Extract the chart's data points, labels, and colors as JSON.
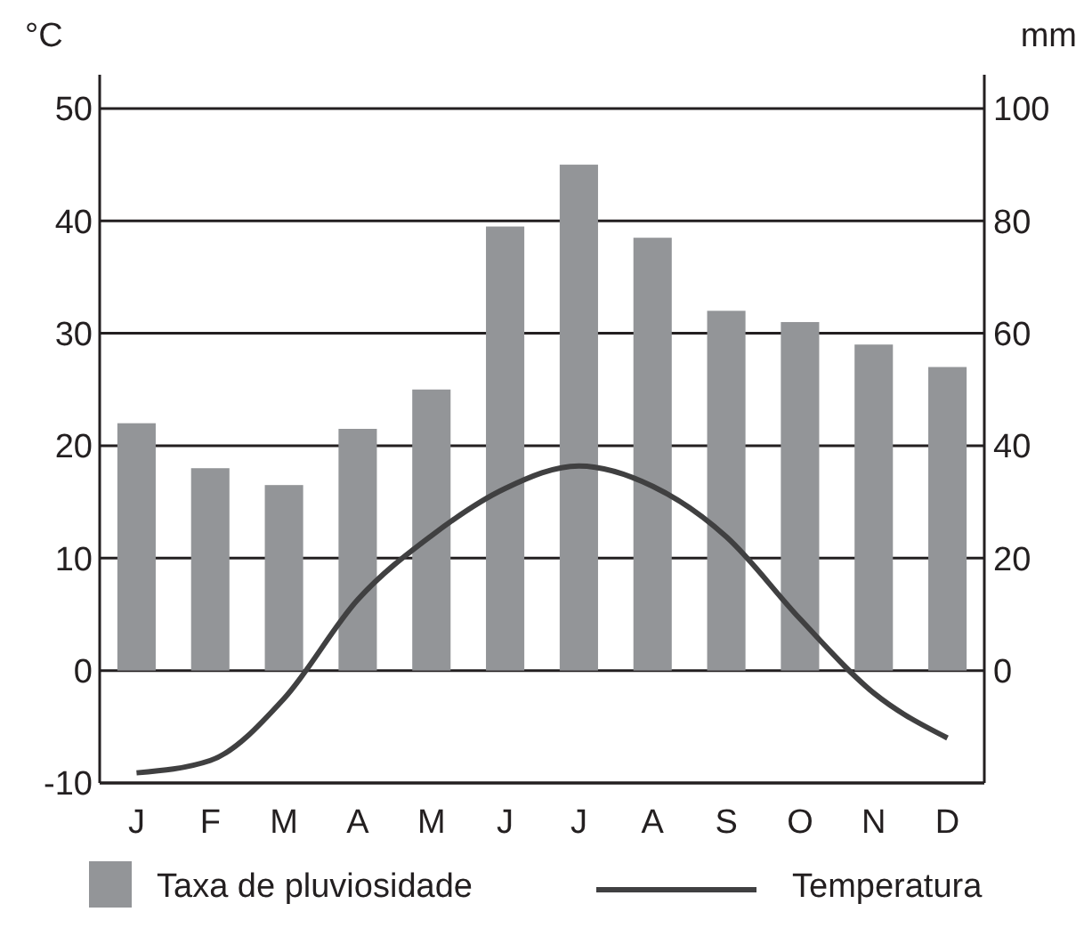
{
  "chart_data": {
    "type": "bar",
    "ylabel": "°C",
    "y2label": "mm",
    "categories": [
      "J",
      "F",
      "M",
      "A",
      "M",
      "J",
      "J",
      "A",
      "S",
      "O",
      "N",
      "D"
    ],
    "series": [
      {
        "name": "Taxa de pluviosidade",
        "axis": "y2",
        "color": "#939598",
        "values": [
          44,
          36,
          33,
          43,
          50,
          79,
          90,
          77,
          64,
          62,
          58,
          54
        ]
      },
      {
        "name": "Temperatura",
        "type": "line",
        "axis": "y",
        "color": "#404041",
        "values": [
          -9.1,
          -8.0,
          -2.5,
          6.3,
          12,
          16.2,
          18.2,
          16.4,
          11.9,
          4.6,
          -2.0,
          -6.0
        ]
      }
    ],
    "ylim": [
      -10,
      53
    ],
    "yticks": [
      -10,
      0,
      10,
      20,
      30,
      40,
      50
    ],
    "y2lim": [
      -20,
      106
    ],
    "y2ticks": [
      0,
      20,
      40,
      60,
      80,
      100
    ],
    "grid": "y",
    "legend": "bottom",
    "marker": "none",
    "line_style": "solid"
  }
}
